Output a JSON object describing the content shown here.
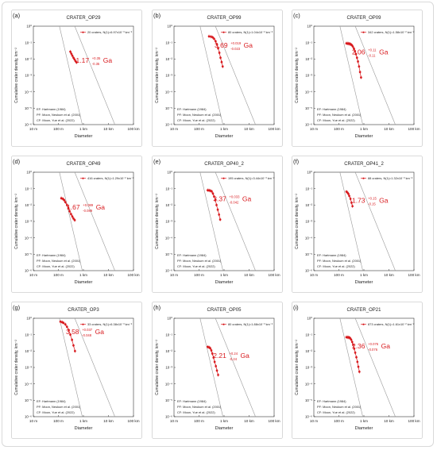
{
  "figure": {
    "shared": {
      "xlabel": "Diameter",
      "ylabel": "Cumulative crater density, km⁻²",
      "xticks": [
        "10 m",
        "100 m",
        "1 km",
        "10 km",
        "100 km"
      ],
      "xtick_values": [
        0.01,
        0.1,
        1,
        10,
        100
      ],
      "yticks": [
        "10⁰",
        "10⁻¹",
        "10⁻²",
        "10⁻³",
        "10⁻⁴",
        "10⁻⁵",
        "10⁻⁶"
      ],
      "ytick_values": [
        1,
        0.1,
        0.01,
        0.001,
        0.0001,
        1e-05,
        1e-06
      ],
      "xlim": [
        0.01,
        100
      ],
      "ylim": [
        1e-06,
        1
      ],
      "scale": "log-log",
      "curve_labels": [
        "EF: Hartmann (1984)",
        "PF: Moon, Neukum et al. (2001)",
        "CF: Moon, Yue et al. (2022)"
      ],
      "colors": {
        "data": "#d8191d",
        "isochron": "#9a9a9a",
        "frame": "#cfcfcf"
      }
    }
  },
  "chart_data": [
    {
      "panel": "(a)",
      "title": "CRATER_OP29",
      "type": "scatter",
      "legend": "20 craters, N(1)=6.97x10⁻³ km⁻²",
      "age": {
        "value": "1.17",
        "plus": "+0.35",
        "minus": "-0.35",
        "unit": "Ga"
      },
      "x": [
        0.3,
        0.33,
        0.36,
        0.4,
        0.44,
        0.48,
        0.53
      ],
      "y": [
        0.028,
        0.021,
        0.016,
        0.012,
        0.0095,
        0.0075,
        0.0062
      ]
    },
    {
      "panel": "(b)",
      "title": "CRATER_OP99",
      "type": "scatter",
      "legend": "80 craters, N(1)=1.04x10⁻² km⁻²",
      "age": {
        "value": "3.69",
        "plus": "+0.019",
        "minus": "-0.023",
        "unit": "Ga"
      },
      "x": [
        0.25,
        0.3,
        0.35,
        0.4,
        0.46,
        0.52,
        0.58,
        0.65,
        0.72,
        0.8,
        0.88
      ],
      "y": [
        0.24,
        0.23,
        0.21,
        0.17,
        0.12,
        0.075,
        0.045,
        0.024,
        0.012,
        0.0065,
        0.0035
      ]
    },
    {
      "panel": "(c)",
      "title": "CRATER_OP09",
      "type": "scatter",
      "legend": "342 craters, N(1)=1.58x10⁻² km⁻²",
      "age": {
        "value": "2.06",
        "plus": "+0.11",
        "minus": "-0.11",
        "unit": "Ga"
      },
      "x": [
        0.2,
        0.22,
        0.24,
        0.26,
        0.28,
        0.3,
        0.33,
        0.36,
        0.4,
        0.44,
        0.48,
        0.53,
        0.58,
        0.64,
        0.7,
        0.77
      ],
      "y": [
        0.09,
        0.088,
        0.087,
        0.085,
        0.082,
        0.078,
        0.07,
        0.058,
        0.043,
        0.03,
        0.02,
        0.012,
        0.007,
        0.0035,
        0.0016,
        0.00075
      ]
    },
    {
      "panel": "(d)",
      "title": "CRATER_OP49",
      "type": "scatter",
      "legend": "416 craters, N(1)=1.29x10⁻² km⁻²",
      "age": {
        "value": "1.67",
        "plus": "+0.089",
        "minus": "-0.089",
        "unit": "Ga"
      },
      "x": [
        0.13,
        0.15,
        0.17,
        0.19,
        0.22,
        0.25,
        0.28,
        0.32,
        0.36,
        0.4,
        0.45
      ],
      "y": [
        0.026,
        0.024,
        0.02,
        0.015,
        0.01,
        0.0065,
        0.0042,
        0.0028,
        0.002,
        0.0015,
        0.0012
      ]
    },
    {
      "panel": "(e)",
      "title": "CRATER_OP40_2",
      "type": "scatter",
      "legend": "195 craters, N(1)=3.44x10⁻³ km⁻²",
      "age": {
        "value": "3.37",
        "plus": "+0.033",
        "minus": "-0.042",
        "unit": "Ga"
      },
      "x": [
        0.22,
        0.25,
        0.28,
        0.32,
        0.36,
        0.4,
        0.45,
        0.5,
        0.56,
        0.63,
        0.7
      ],
      "y": [
        0.08,
        0.078,
        0.075,
        0.068,
        0.05,
        0.033,
        0.02,
        0.01,
        0.0052,
        0.0026,
        0.0013
      ]
    },
    {
      "panel": "(f)",
      "title": "CRATER_OP41_2",
      "type": "scatter",
      "legend": "88 craters, N(1)=1.32x10⁻³ km⁻²",
      "age": {
        "value": "1.73",
        "plus": "+0.15",
        "minus": "-0.15",
        "unit": "Ga"
      },
      "x": [
        0.2,
        0.22,
        0.24,
        0.26,
        0.29,
        0.32,
        0.35
      ],
      "y": [
        0.065,
        0.058,
        0.048,
        0.036,
        0.024,
        0.014,
        0.0085
      ]
    },
    {
      "panel": "(g)",
      "title": "CRATER_OP3",
      "type": "scatter",
      "legend": "33 craters, N(1)=6.38x10⁻³ km⁻²",
      "age": {
        "value": "3.58",
        "plus": "+0.037",
        "minus": "-0.048",
        "unit": "Ga"
      },
      "x": [
        0.12,
        0.14,
        0.16,
        0.19,
        0.22,
        0.26,
        0.3,
        0.35,
        0.4,
        0.46
      ],
      "y": [
        0.62,
        0.58,
        0.52,
        0.42,
        0.3,
        0.19,
        0.1,
        0.048,
        0.022,
        0.01
      ]
    },
    {
      "panel": "(h)",
      "title": "CRATER_OP05",
      "type": "scatter",
      "legend": "80 craters, N(1)=1.88x10⁻³ km⁻²",
      "age": {
        "value": "2.21",
        "plus": "+0.24",
        "minus": "-0.24",
        "unit": "Ga"
      },
      "x": [
        0.22,
        0.25,
        0.28,
        0.31,
        0.34,
        0.38,
        0.42,
        0.47,
        0.52,
        0.58
      ],
      "y": [
        0.018,
        0.017,
        0.015,
        0.011,
        0.007,
        0.004,
        0.0022,
        0.0012,
        0.00065,
        0.00035
      ]
    },
    {
      "panel": "(i)",
      "title": "CRATER_OP21",
      "type": "scatter",
      "legend": "873 craters, N(1)=1.61x10⁻² km⁻²",
      "age": {
        "value": "2.36",
        "plus": "+0.076",
        "minus": "-0.076",
        "unit": "Ga"
      },
      "x": [
        0.2,
        0.22,
        0.24,
        0.26,
        0.28,
        0.31,
        0.34,
        0.37,
        0.41,
        0.45,
        0.5,
        0.55,
        0.6,
        0.66
      ],
      "y": [
        0.07,
        0.069,
        0.068,
        0.066,
        0.062,
        0.05,
        0.036,
        0.024,
        0.014,
        0.008,
        0.0042,
        0.0022,
        0.0011,
        0.00055
      ]
    }
  ]
}
